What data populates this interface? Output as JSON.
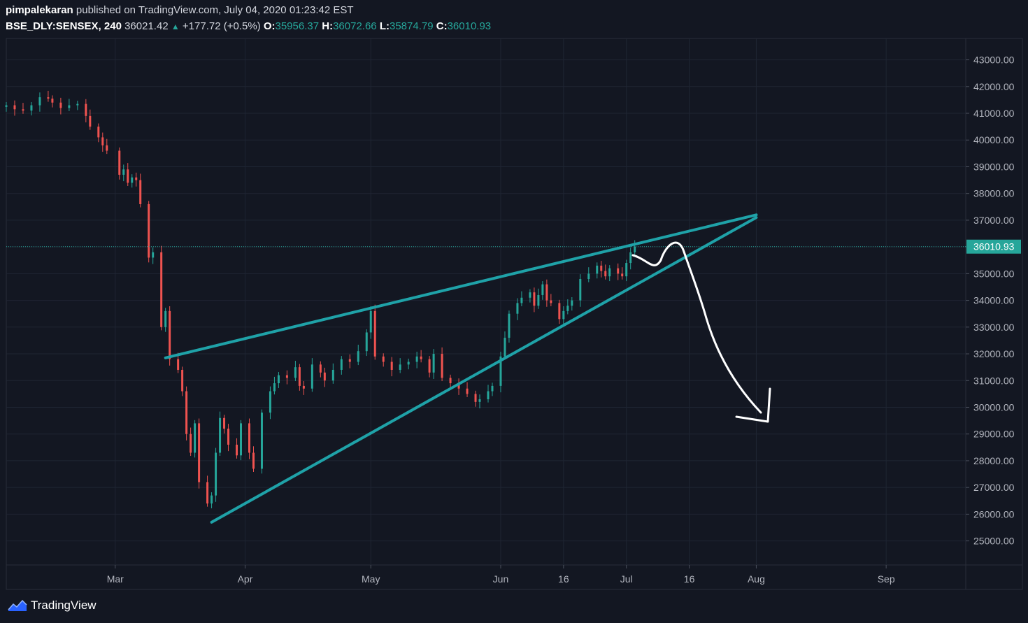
{
  "header": {
    "author": "pimpalekaran",
    "published_text": "published on TradingView.com, July 04, 2020 01:23:42 EST",
    "symbol": "BSE_DLY:SENSEX, 240",
    "last": "36021.42",
    "change": "+177.72 (+0.5%)",
    "o_label": "O:",
    "o_value": "35956.37",
    "h_label": "H:",
    "h_value": "36072.66",
    "l_label": "L:",
    "l_value": "35874.79",
    "c_label": "C:",
    "c_value": "36010.93"
  },
  "footer": {
    "brand": "TradingView"
  },
  "colors": {
    "background": "#131722",
    "up": "#26a69a",
    "down": "#ef5350",
    "trendline": "#1fa2a8",
    "grid": "#1f2533"
  },
  "chart_data": {
    "type": "candlestick",
    "ylim": [
      24100,
      43800
    ],
    "y_ticks": [
      25000,
      26000,
      27000,
      28000,
      29000,
      30000,
      31000,
      32000,
      33000,
      34000,
      35000,
      36000,
      37000,
      38000,
      39000,
      40000,
      41000,
      42000,
      43000
    ],
    "y_tick_labels": [
      "25000.00",
      "26000.00",
      "27000.00",
      "28000.00",
      "29000.00",
      "30000.00",
      "31000.00",
      "32000.00",
      "33000.00",
      "34000.00",
      "35000.00",
      "36000.00",
      "37000.00",
      "38000.00",
      "39000.00",
      "40000.00",
      "41000.00",
      "42000.00",
      "43000.00"
    ],
    "x_range": [
      "2020-02-04",
      "2020-09-20"
    ],
    "x_ticks": [
      {
        "date": "2020-03-01",
        "label": "Mar"
      },
      {
        "date": "2020-04-01",
        "label": "Apr"
      },
      {
        "date": "2020-05-01",
        "label": "May"
      },
      {
        "date": "2020-06-01",
        "label": "Jun"
      },
      {
        "date": "2020-06-16",
        "label": "16"
      },
      {
        "date": "2020-07-01",
        "label": "Jul"
      },
      {
        "date": "2020-07-16",
        "label": "16"
      },
      {
        "date": "2020-08-01",
        "label": "Aug"
      },
      {
        "date": "2020-09-01",
        "label": "Sep"
      }
    ],
    "last_price": 36010.93,
    "last_price_label": "36010.93",
    "candles": [
      {
        "date": "2020-02-04",
        "close": 41300
      },
      {
        "date": "2020-02-06",
        "close": 41150
      },
      {
        "date": "2020-02-08",
        "close": 41100
      },
      {
        "date": "2020-02-10",
        "close": 41300
      },
      {
        "date": "2020-02-12",
        "close": 41600
      },
      {
        "date": "2020-02-14",
        "close": 41550
      },
      {
        "date": "2020-02-15",
        "close": 41400
      },
      {
        "date": "2020-02-17",
        "close": 41200
      },
      {
        "date": "2020-02-19",
        "close": 41300
      },
      {
        "date": "2020-02-21",
        "close": 41350
      },
      {
        "date": "2020-02-23",
        "close": 40900
      },
      {
        "date": "2020-02-24",
        "close": 40500
      },
      {
        "date": "2020-02-26",
        "close": 40100
      },
      {
        "date": "2020-02-27",
        "close": 39800
      },
      {
        "date": "2020-02-28",
        "close": 39600
      },
      {
        "date": "2020-03-02",
        "close": 38700
      },
      {
        "date": "2020-03-03",
        "close": 38900
      },
      {
        "date": "2020-03-04",
        "close": 38400
      },
      {
        "date": "2020-03-05",
        "close": 38600
      },
      {
        "date": "2020-03-06",
        "close": 38500
      },
      {
        "date": "2020-03-07",
        "close": 37600
      },
      {
        "date": "2020-03-09",
        "close": 35600
      },
      {
        "date": "2020-03-10",
        "close": 35800
      },
      {
        "date": "2020-03-12",
        "close": 33000
      },
      {
        "date": "2020-03-13",
        "close": 33600
      },
      {
        "date": "2020-03-14",
        "close": 31800
      },
      {
        "date": "2020-03-16",
        "close": 31400
      },
      {
        "date": "2020-03-17",
        "close": 30600
      },
      {
        "date": "2020-03-18",
        "close": 29000
      },
      {
        "date": "2020-03-19",
        "close": 28300
      },
      {
        "date": "2020-03-20",
        "close": 29400
      },
      {
        "date": "2020-03-21",
        "close": 27200
      },
      {
        "date": "2020-03-23",
        "close": 26400
      },
      {
        "date": "2020-03-24",
        "close": 26700
      },
      {
        "date": "2020-03-25",
        "close": 28300
      },
      {
        "date": "2020-03-26",
        "close": 29600
      },
      {
        "date": "2020-03-27",
        "close": 29200
      },
      {
        "date": "2020-03-28",
        "close": 28600
      },
      {
        "date": "2020-03-30",
        "close": 28200
      },
      {
        "date": "2020-03-31",
        "close": 29400
      },
      {
        "date": "2020-04-02",
        "close": 28300
      },
      {
        "date": "2020-04-03",
        "close": 27700
      },
      {
        "date": "2020-04-05",
        "close": 29800
      },
      {
        "date": "2020-04-07",
        "close": 30600
      },
      {
        "date": "2020-04-08",
        "close": 30900
      },
      {
        "date": "2020-04-09",
        "close": 31200
      },
      {
        "date": "2020-04-11",
        "close": 31100
      },
      {
        "date": "2020-04-13",
        "close": 31500
      },
      {
        "date": "2020-04-14",
        "close": 30800
      },
      {
        "date": "2020-04-15",
        "close": 30700
      },
      {
        "date": "2020-04-17",
        "close": 31600
      },
      {
        "date": "2020-04-19",
        "close": 31300
      },
      {
        "date": "2020-04-20",
        "close": 31000
      },
      {
        "date": "2020-04-22",
        "close": 31400
      },
      {
        "date": "2020-04-24",
        "close": 31800
      },
      {
        "date": "2020-04-26",
        "close": 31700
      },
      {
        "date": "2020-04-28",
        "close": 32100
      },
      {
        "date": "2020-04-30",
        "close": 32800
      },
      {
        "date": "2020-05-01",
        "close": 33600
      },
      {
        "date": "2020-05-02",
        "close": 31900
      },
      {
        "date": "2020-05-04",
        "close": 31700
      },
      {
        "date": "2020-05-06",
        "close": 31400
      },
      {
        "date": "2020-05-08",
        "close": 31600
      },
      {
        "date": "2020-05-10",
        "close": 31700
      },
      {
        "date": "2020-05-12",
        "close": 31900
      },
      {
        "date": "2020-05-13",
        "close": 31800
      },
      {
        "date": "2020-05-15",
        "close": 31300
      },
      {
        "date": "2020-05-16",
        "close": 32000
      },
      {
        "date": "2020-05-18",
        "close": 31100
      },
      {
        "date": "2020-05-20",
        "close": 30900
      },
      {
        "date": "2020-05-22",
        "close": 30700
      },
      {
        "date": "2020-05-24",
        "close": 30500
      },
      {
        "date": "2020-05-26",
        "close": 30200
      },
      {
        "date": "2020-05-27",
        "close": 30300
      },
      {
        "date": "2020-05-29",
        "close": 30600
      },
      {
        "date": "2020-05-30",
        "close": 30800
      },
      {
        "date": "2020-06-01",
        "close": 31900
      },
      {
        "date": "2020-06-02",
        "close": 32600
      },
      {
        "date": "2020-06-03",
        "close": 33500
      },
      {
        "date": "2020-06-05",
        "close": 33900
      },
      {
        "date": "2020-06-06",
        "close": 34100
      },
      {
        "date": "2020-06-08",
        "close": 34300
      },
      {
        "date": "2020-06-09",
        "close": 33800
      },
      {
        "date": "2020-06-10",
        "close": 34200
      },
      {
        "date": "2020-06-11",
        "close": 34600
      },
      {
        "date": "2020-06-12",
        "close": 34000
      },
      {
        "date": "2020-06-13",
        "close": 33900
      },
      {
        "date": "2020-06-15",
        "close": 33300
      },
      {
        "date": "2020-06-16",
        "close": 33600
      },
      {
        "date": "2020-06-17",
        "close": 33800
      },
      {
        "date": "2020-06-18",
        "close": 34000
      },
      {
        "date": "2020-06-20",
        "close": 34800
      },
      {
        "date": "2020-06-22",
        "close": 35000
      },
      {
        "date": "2020-06-24",
        "close": 35300
      },
      {
        "date": "2020-06-25",
        "close": 35100
      },
      {
        "date": "2020-06-26",
        "close": 34900
      },
      {
        "date": "2020-06-27",
        "close": 35200
      },
      {
        "date": "2020-06-29",
        "close": 35000
      },
      {
        "date": "2020-06-30",
        "close": 34900
      },
      {
        "date": "2020-07-01",
        "close": 35400
      },
      {
        "date": "2020-07-02",
        "close": 35800
      },
      {
        "date": "2020-07-03",
        "close": 36010.93
      }
    ],
    "annotations": [
      {
        "type": "trendline",
        "label": "upper",
        "from": {
          "date": "2020-03-13",
          "value": 31850
        },
        "to": {
          "date": "2020-08-01",
          "value": 37200
        }
      },
      {
        "type": "trendline",
        "label": "lower",
        "from": {
          "date": "2020-03-24",
          "value": 25700
        },
        "to": {
          "date": "2020-08-01",
          "value": 37100
        }
      }
    ]
  }
}
